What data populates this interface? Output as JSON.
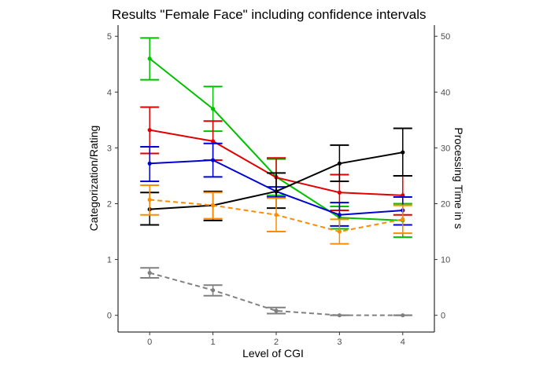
{
  "chart_data": {
    "type": "line",
    "title": "Results \"Female Face\" including confidence intervals",
    "xlabel": "Level of CGI",
    "ylabel": "Categorization/Rating",
    "y2label": "Processing Time in s",
    "x": [
      0,
      1,
      2,
      3,
      4
    ],
    "xlim": [
      -0.5,
      4.5
    ],
    "ylim": [
      -0.3,
      5.2
    ],
    "y2lim": [
      -3,
      52
    ],
    "y_ticks": [
      0,
      1,
      2,
      3,
      4,
      5
    ],
    "y2_ticks": [
      0,
      10,
      20,
      30,
      40,
      50
    ],
    "grid": false,
    "legend": "none",
    "series": [
      {
        "color": "#00c000",
        "dashed": false,
        "axis": "left",
        "values": [
          4.6,
          3.7,
          2.48,
          1.75,
          1.7
        ],
        "lower": [
          4.22,
          3.3,
          2.15,
          1.55,
          1.4
        ],
        "upper": [
          4.97,
          4.1,
          2.8,
          1.95,
          2.0
        ]
      },
      {
        "color": "#e00000",
        "dashed": false,
        "axis": "left",
        "values": [
          3.32,
          3.12,
          2.47,
          2.2,
          2.15
        ],
        "lower": [
          2.9,
          2.78,
          2.12,
          1.88,
          1.8
        ],
        "upper": [
          3.73,
          3.48,
          2.82,
          2.52,
          2.5
        ]
      },
      {
        "color": "#0000d0",
        "dashed": false,
        "axis": "left",
        "values": [
          2.72,
          2.78,
          2.22,
          1.8,
          1.88
        ],
        "lower": [
          2.4,
          2.48,
          2.12,
          1.6,
          1.62
        ],
        "upper": [
          3.02,
          3.08,
          2.3,
          2.02,
          2.12
        ]
      },
      {
        "color": "#000000",
        "dashed": false,
        "axis": "left",
        "values": [
          1.9,
          1.97,
          2.22,
          2.72,
          2.92
        ],
        "lower": [
          1.62,
          1.7,
          1.92,
          2.4,
          2.5
        ],
        "upper": [
          2.2,
          2.22,
          2.55,
          3.05,
          3.35
        ]
      },
      {
        "color": "#ff8c00",
        "dashed": true,
        "axis": "left",
        "values": [
          2.07,
          1.97,
          1.8,
          1.5,
          1.72
        ],
        "lower": [
          1.8,
          1.73,
          1.5,
          1.28,
          1.47
        ],
        "upper": [
          2.33,
          2.2,
          2.1,
          1.72,
          1.97
        ]
      },
      {
        "color": "#808080",
        "dashed": true,
        "axis": "left",
        "values": [
          0.76,
          0.45,
          0.08,
          0.0,
          0.0
        ],
        "lower": [
          0.67,
          0.35,
          0.03,
          0.0,
          0.0
        ],
        "upper": [
          0.85,
          0.54,
          0.14,
          0.0,
          0.0
        ]
      }
    ]
  }
}
